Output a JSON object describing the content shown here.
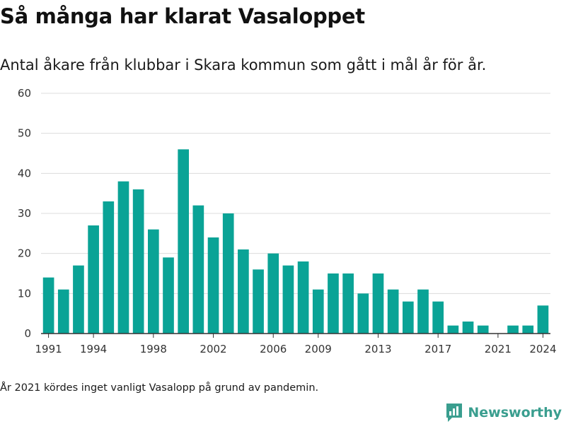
{
  "header": {
    "title": "Så många har klarat Vasaloppet",
    "subtitle": "Antal åkare från klubbar i Skara kommun som gått i mål år för år."
  },
  "footer": {
    "note": "År 2021 kördes inget vanligt Vasalopp på grund av pandemin.",
    "brand": "Newsworthy",
    "brand_icon": "newsworthy-logo-icon"
  },
  "colors": {
    "bar": "#0aa396",
    "grid": "#dcdcdc",
    "axis": "#333333",
    "brand": "#3a9e8f"
  },
  "chart_data": {
    "type": "bar",
    "title": "Så många har klarat Vasaloppet",
    "subtitle": "Antal åkare från klubbar i Skara kommun som gått i mål år för år.",
    "xlabel": "",
    "ylabel": "",
    "categories": [
      1991,
      1992,
      1993,
      1994,
      1995,
      1996,
      1997,
      1998,
      1999,
      2000,
      2001,
      2002,
      2003,
      2004,
      2005,
      2006,
      2007,
      2008,
      2009,
      2010,
      2011,
      2012,
      2013,
      2014,
      2015,
      2016,
      2017,
      2018,
      2019,
      2020,
      2021,
      2022,
      2023,
      2024
    ],
    "values": [
      14,
      11,
      17,
      27,
      33,
      38,
      36,
      26,
      19,
      46,
      32,
      24,
      30,
      21,
      16,
      20,
      17,
      18,
      11,
      15,
      15,
      10,
      15,
      11,
      8,
      11,
      8,
      2,
      3,
      2,
      0,
      2,
      2,
      7
    ],
    "x_tick_labels": [
      "1991",
      "1994",
      "1998",
      "2002",
      "2006",
      "2009",
      "2013",
      "2017",
      "2021",
      "2024"
    ],
    "yticks": [
      0,
      10,
      20,
      30,
      40,
      50,
      60
    ],
    "ylim": [
      0,
      60
    ],
    "grid": true,
    "legend": "none"
  }
}
